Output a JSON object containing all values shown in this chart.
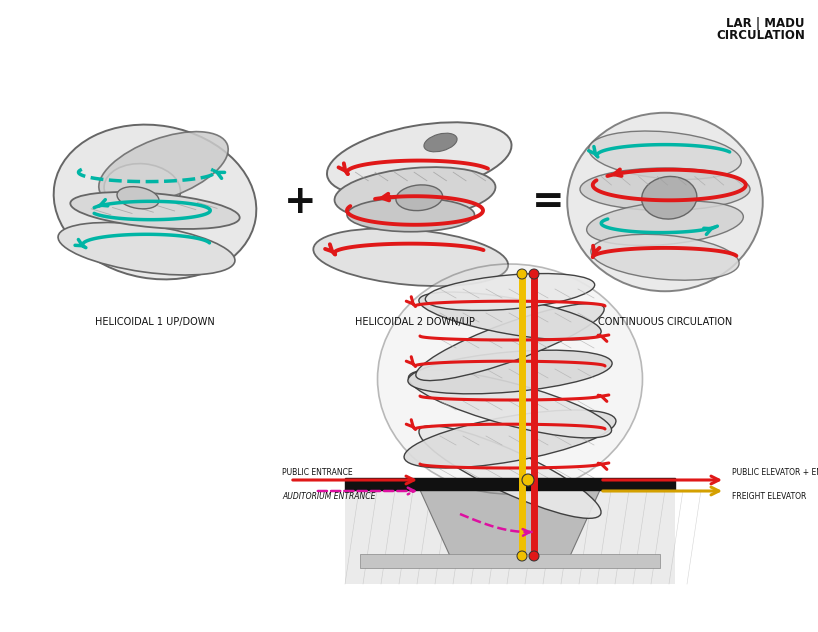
{
  "bg_color": "#ffffff",
  "title_line1": "LAR | MADU",
  "title_line2": "CIRCULATION",
  "label1": "HELICOIDAL 1 UP/DOWN",
  "label2": "HELICOIDAL 2 DOWN/UP",
  "label3": "CONTINUOUS CIRCULATION",
  "cyan_color": "#00b5a5",
  "red_color": "#e01818",
  "magenta_color": "#dd10a0",
  "yellow_color": "#e8c000",
  "dark_color": "#111111",
  "gray_light": "#e8e8e8",
  "gray_mid": "#cccccc",
  "gray_dark": "#999999",
  "gray_darker": "#666666",
  "anno_left1": "PUBLIC ENTRANCE",
  "anno_left2": "AUDITORIUM ENTRANCE",
  "anno_right1": "PUBLIC ELEVATOR + ENTRANCE",
  "anno_right2": "FREIGHT ELEVATOR"
}
